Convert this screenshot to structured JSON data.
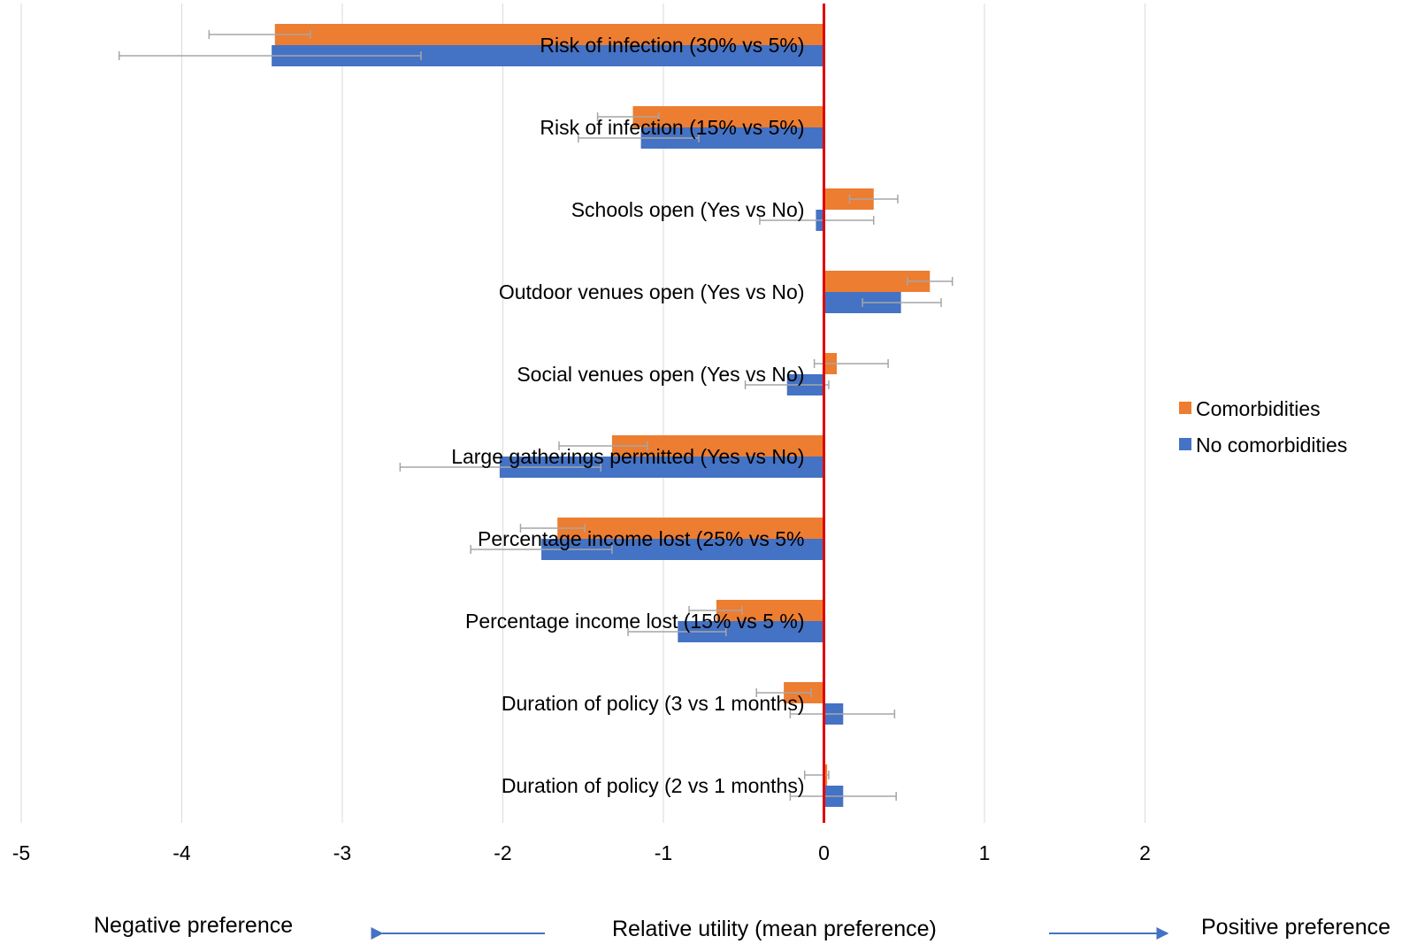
{
  "chart_data": {
    "type": "bar",
    "orientation": "horizontal",
    "categories": [
      "Risk of infection (30% vs 5%)",
      "Risk of infection (15% vs 5%)",
      "Schools open (Yes vs No)",
      "Outdoor venues open (Yes vs No)",
      "Social venues  open (Yes vs No)",
      "Large gatherings permitted (Yes vs No)",
      "Percentage income lost (25% vs 5%",
      "Percentage income lost (15% vs 5 %)",
      "Duration of policy (3 vs 1 months)",
      "Duration of policy (2 vs 1 months)"
    ],
    "series": [
      {
        "name": "Comorbidities",
        "color": "#ED7D31",
        "values": [
          -3.42,
          -1.19,
          0.31,
          0.66,
          0.08,
          -1.32,
          -1.66,
          -0.67,
          -0.25,
          0.02
        ],
        "error_low": [
          -3.83,
          -1.41,
          0.16,
          0.52,
          -0.06,
          -1.65,
          -1.89,
          -0.84,
          -0.42,
          -0.12
        ],
        "error_high": [
          -3.2,
          -1.03,
          0.46,
          0.8,
          0.4,
          -1.1,
          -1.49,
          -0.51,
          -0.08,
          0.03
        ]
      },
      {
        "name": "No comorbidities",
        "color": "#4472C4",
        "values": [
          -3.44,
          -1.14,
          -0.05,
          0.48,
          -0.23,
          -2.02,
          -1.76,
          -0.91,
          0.12,
          0.12
        ],
        "error_low": [
          -4.39,
          -1.53,
          -0.4,
          0.24,
          -0.49,
          -2.64,
          -2.2,
          -1.22,
          -0.21,
          -0.21
        ],
        "error_high": [
          -2.51,
          -0.78,
          0.31,
          0.73,
          0.03,
          -1.39,
          -1.32,
          -0.61,
          0.44,
          0.45
        ]
      }
    ],
    "xlim": [
      -5,
      2
    ],
    "xticks": [
      "-5",
      "-4",
      "-3",
      "-2",
      "-1",
      "0",
      "1",
      "2"
    ],
    "grid": true,
    "reference_line": {
      "value": 0,
      "color": "#E00000"
    },
    "legend_position": "right",
    "xlabel": "Relative utility (mean preference)",
    "annotations": {
      "left": "Negative preference",
      "right": "Positive preference"
    }
  }
}
